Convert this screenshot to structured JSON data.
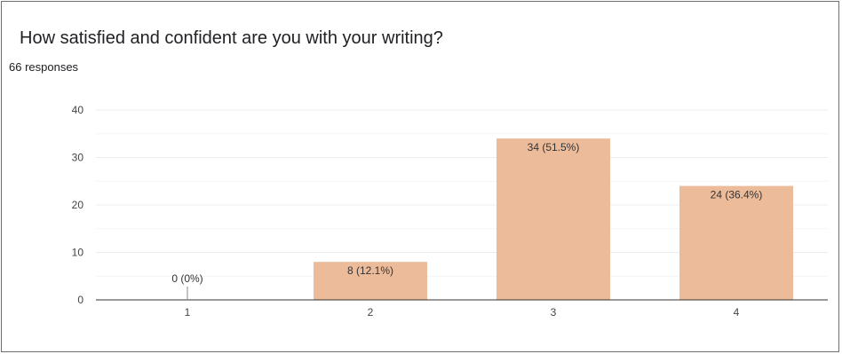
{
  "question": {
    "title": "How satisfied and confident are you with your writing?",
    "responses": "66 responses"
  },
  "colors": {
    "bar": "#ecbb9a",
    "gridline": "#ececec",
    "baseline": "#333333",
    "text": "#202124"
  },
  "chart_data": {
    "type": "bar",
    "categories": [
      "1",
      "2",
      "3",
      "4"
    ],
    "values": [
      0,
      8,
      34,
      24
    ],
    "data_labels": [
      "0 (0%)",
      "8 (12.1%)",
      "34 (51.5%)",
      "24 (36.4%)"
    ],
    "title": "How satisfied and confident are you with your writing?",
    "subtitle": "66 responses",
    "xlabel": "",
    "ylabel": "",
    "ylim": [
      0,
      40
    ],
    "yticks": [
      0,
      10,
      20,
      30,
      40
    ],
    "grid": true,
    "legend": "none"
  }
}
